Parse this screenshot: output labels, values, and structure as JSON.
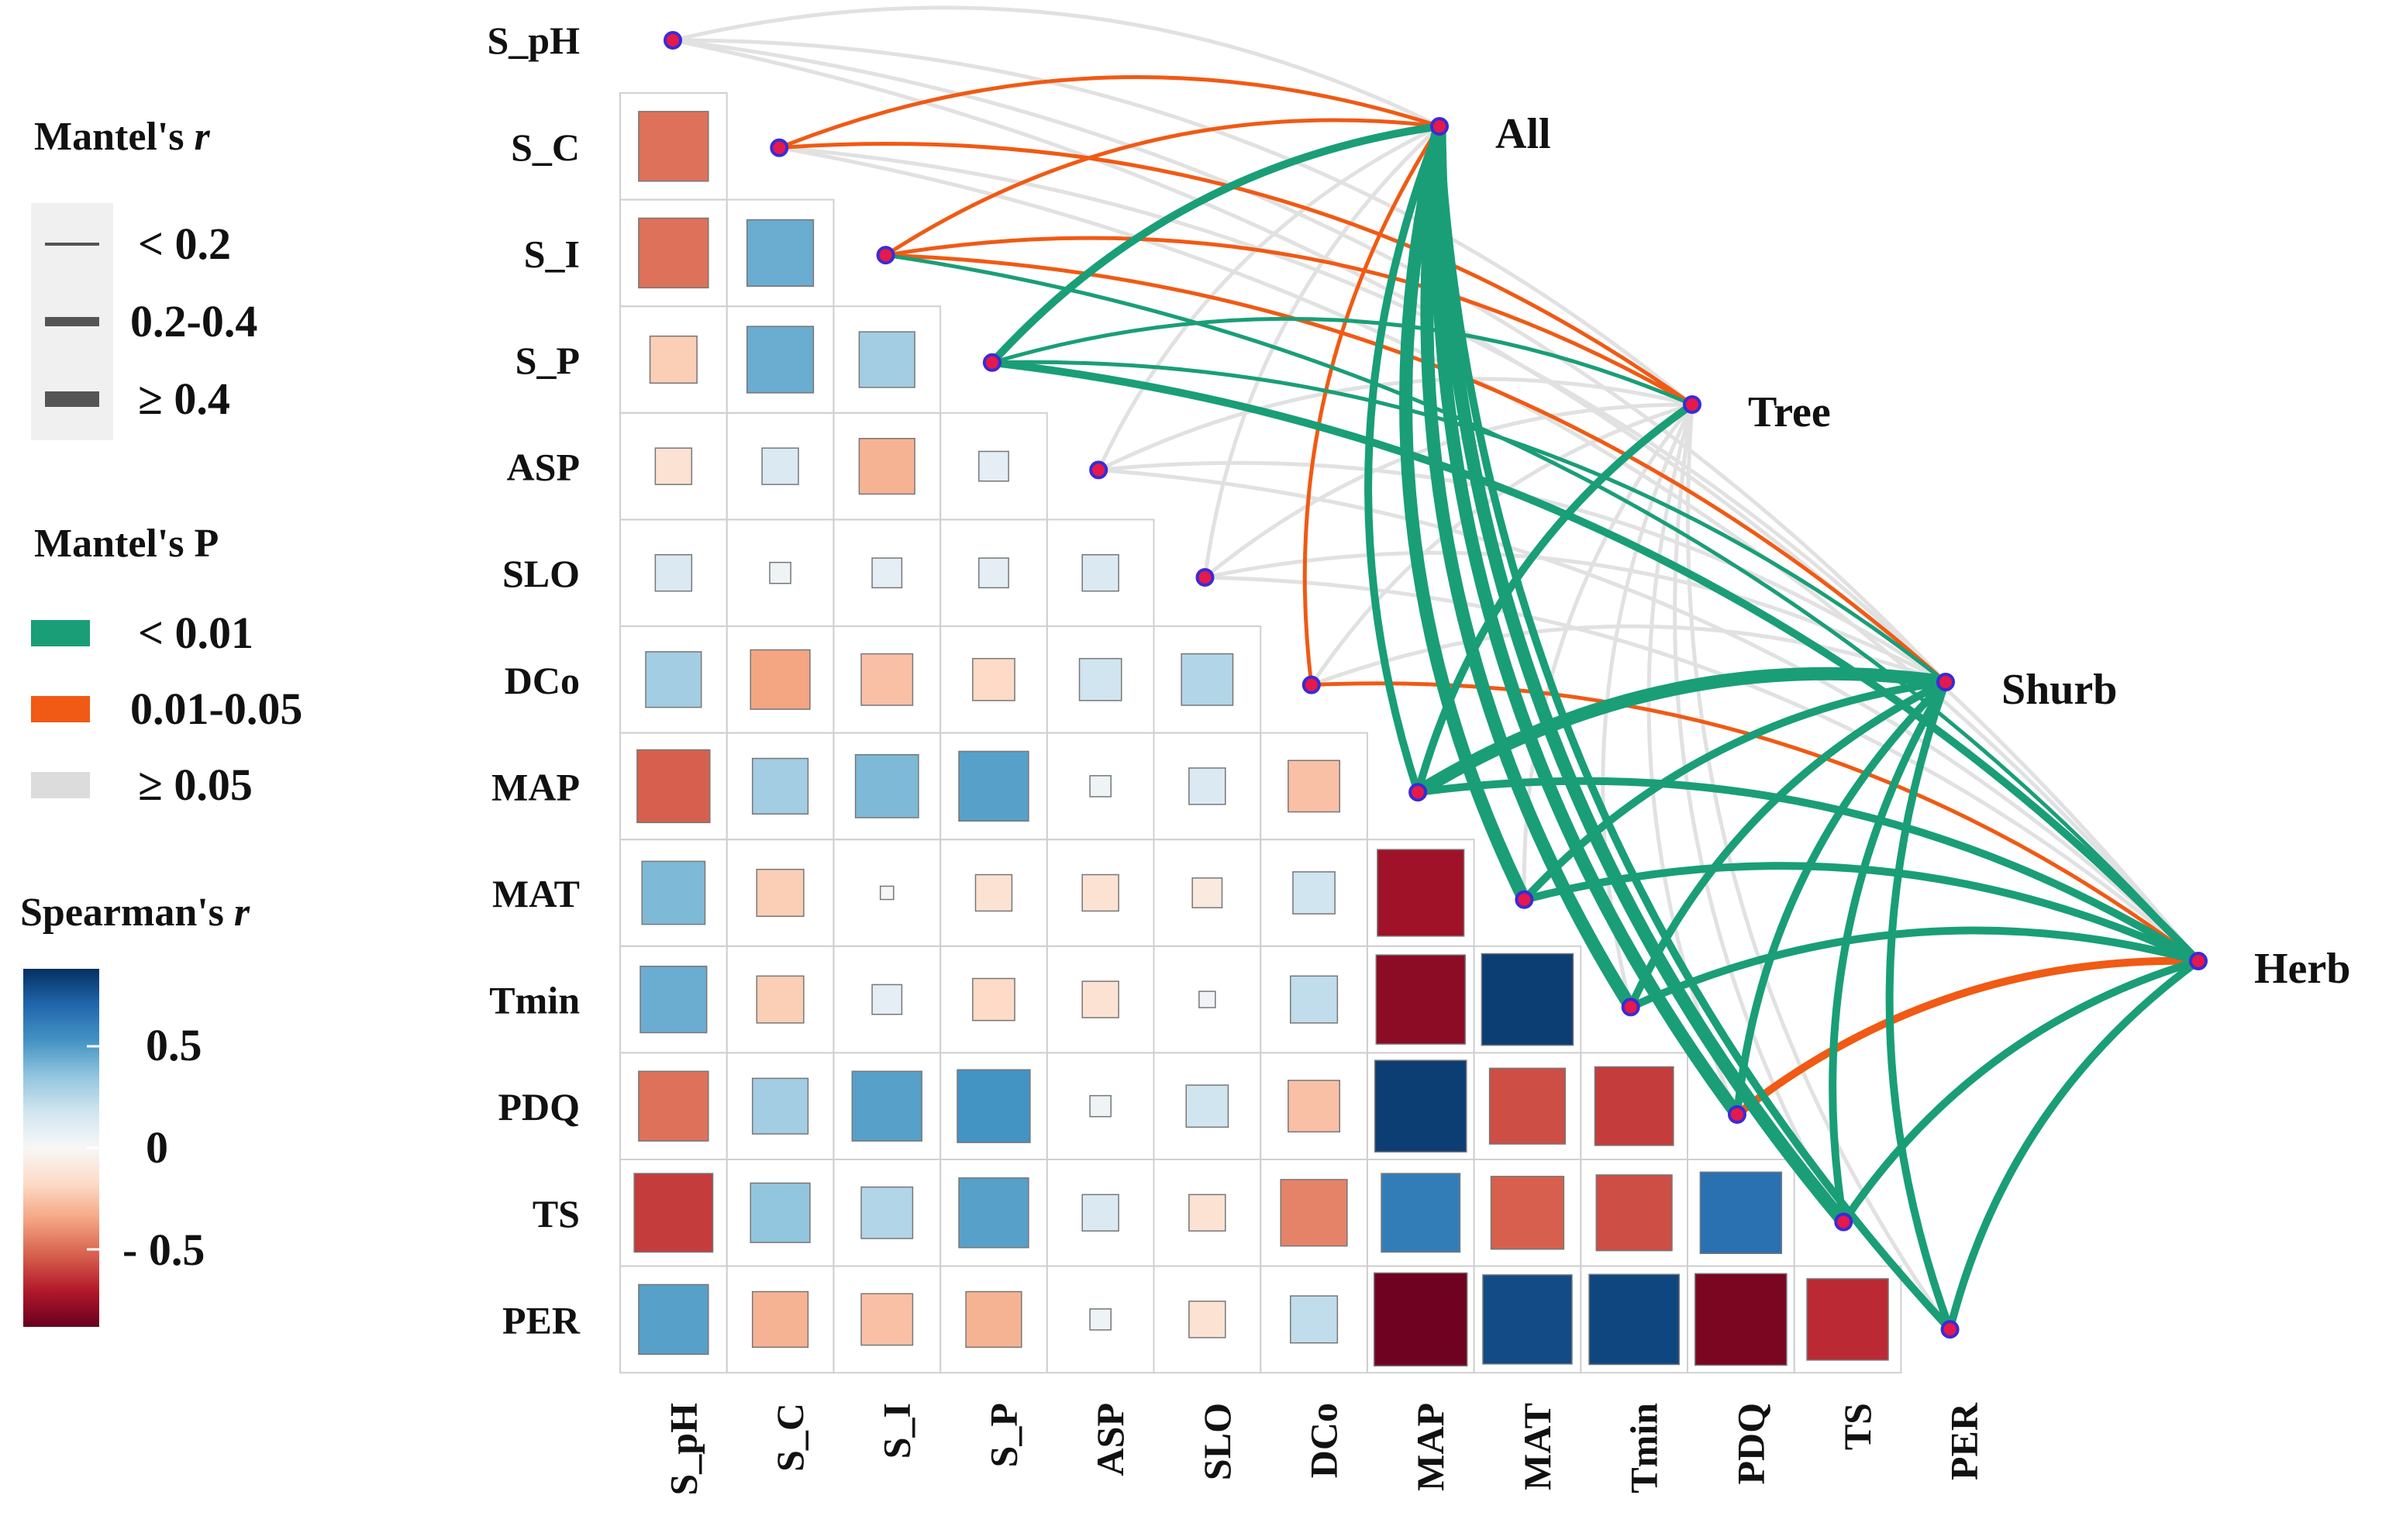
{
  "chart_data": {
    "type": "heatmap",
    "title": "",
    "variables": [
      "S_pH",
      "S_C",
      "S_I",
      "S_P",
      "ASP",
      "SLO",
      "DCo",
      "MAP",
      "MAT",
      "Tmin",
      "PDQ",
      "TS",
      "PER"
    ],
    "heatmap_rows": [
      "S_C",
      "S_I",
      "S_P",
      "ASP",
      "SLO",
      "DCo",
      "MAP",
      "MAT",
      "Tmin",
      "PDQ",
      "TS",
      "PER"
    ],
    "heatmap_cols": [
      "S_pH",
      "S_C",
      "S_I",
      "S_P",
      "ASP",
      "SLO",
      "DCo",
      "MAP",
      "MAT",
      "Tmin",
      "PDQ",
      "TS",
      "PER"
    ],
    "spearman_r": {
      "S_C": [
        -0.55
      ],
      "S_I": [
        -0.55,
        0.5
      ],
      "S_P": [
        -0.25,
        0.5,
        0.35
      ],
      "ASP": [
        -0.15,
        0.15,
        -0.35,
        0.1
      ],
      "SLO": [
        0.15,
        0.05,
        0.1,
        0.1,
        0.15
      ],
      "DCo": [
        0.35,
        -0.4,
        -0.3,
        -0.2,
        0.2,
        0.3
      ],
      "MAP": [
        -0.6,
        0.35,
        0.45,
        0.55,
        0.05,
        0.15,
        -0.3
      ],
      "MAT": [
        0.45,
        -0.25,
        0.02,
        -0.15,
        -0.15,
        -0.1,
        0.2,
        -0.85
      ],
      "Tmin": [
        0.5,
        -0.25,
        0.1,
        -0.2,
        -0.15,
        0.03,
        0.25,
        -0.9,
        0.95
      ],
      "PDQ": [
        -0.55,
        0.35,
        0.55,
        0.6,
        0.05,
        0.2,
        -0.3,
        0.95,
        -0.65,
        -0.7
      ],
      "TS": [
        -0.7,
        0.4,
        0.3,
        0.55,
        0.15,
        -0.15,
        -0.5,
        0.7,
        -0.6,
        -0.65,
        0.75
      ],
      "PER": [
        0.55,
        -0.35,
        -0.3,
        -0.35,
        0.05,
        -0.15,
        0.25,
        -0.98,
        0.9,
        0.92,
        -0.95,
        -0.75
      ]
    },
    "groups": [
      "All",
      "Tree",
      "Shurb",
      "Herb"
    ],
    "mantel_links": [
      {
        "group": "All",
        "var": "S_pH",
        "p": "≥ 0.05",
        "r": "< 0.2"
      },
      {
        "group": "All",
        "var": "S_C",
        "p": "0.01-0.05",
        "r": "< 0.2"
      },
      {
        "group": "All",
        "var": "S_I",
        "p": "0.01-0.05",
        "r": "< 0.2"
      },
      {
        "group": "All",
        "var": "S_P",
        "p": "< 0.01",
        "r": "0.2-0.4"
      },
      {
        "group": "All",
        "var": "ASP",
        "p": "≥ 0.05",
        "r": "< 0.2"
      },
      {
        "group": "All",
        "var": "SLO",
        "p": "≥ 0.05",
        "r": "< 0.2"
      },
      {
        "group": "All",
        "var": "DCo",
        "p": "0.01-0.05",
        "r": "< 0.2"
      },
      {
        "group": "All",
        "var": "MAP",
        "p": "< 0.01",
        "r": "0.2-0.4"
      },
      {
        "group": "All",
        "var": "MAT",
        "p": "< 0.01",
        "r": "≥ 0.4"
      },
      {
        "group": "All",
        "var": "Tmin",
        "p": "< 0.01",
        "r": "≥ 0.4"
      },
      {
        "group": "All",
        "var": "PDQ",
        "p": "< 0.01",
        "r": "≥ 0.4"
      },
      {
        "group": "All",
        "var": "TS",
        "p": "< 0.01",
        "r": "≥ 0.4"
      },
      {
        "group": "All",
        "var": "PER",
        "p": "< 0.01",
        "r": "0.2-0.4"
      },
      {
        "group": "Tree",
        "var": "S_pH",
        "p": "≥ 0.05",
        "r": "< 0.2"
      },
      {
        "group": "Tree",
        "var": "S_C",
        "p": "0.01-0.05",
        "r": "< 0.2"
      },
      {
        "group": "Tree",
        "var": "S_I",
        "p": "0.01-0.05",
        "r": "< 0.2"
      },
      {
        "group": "Tree",
        "var": "S_P",
        "p": "< 0.01",
        "r": "< 0.2"
      },
      {
        "group": "Tree",
        "var": "ASP",
        "p": "≥ 0.05",
        "r": "< 0.2"
      },
      {
        "group": "Tree",
        "var": "SLO",
        "p": "≥ 0.05",
        "r": "< 0.2"
      },
      {
        "group": "Tree",
        "var": "DCo",
        "p": "≥ 0.05",
        "r": "< 0.2"
      },
      {
        "group": "Tree",
        "var": "MAP",
        "p": "< 0.01",
        "r": "0.2-0.4"
      },
      {
        "group": "Tree",
        "var": "MAT",
        "p": "≥ 0.05",
        "r": "< 0.2"
      },
      {
        "group": "Tree",
        "var": "Tmin",
        "p": "≥ 0.05",
        "r": "< 0.2"
      },
      {
        "group": "Tree",
        "var": "PDQ",
        "p": "≥ 0.05",
        "r": "< 0.2"
      },
      {
        "group": "Tree",
        "var": "TS",
        "p": "≥ 0.05",
        "r": "< 0.2"
      },
      {
        "group": "Tree",
        "var": "PER",
        "p": "≥ 0.05",
        "r": "< 0.2"
      },
      {
        "group": "Shurb",
        "var": "S_pH",
        "p": "≥ 0.05",
        "r": "< 0.2"
      },
      {
        "group": "Shurb",
        "var": "S_C",
        "p": "≥ 0.05",
        "r": "< 0.2"
      },
      {
        "group": "Shurb",
        "var": "S_I",
        "p": "0.01-0.05",
        "r": "< 0.2"
      },
      {
        "group": "Shurb",
        "var": "S_P",
        "p": "< 0.01",
        "r": "< 0.2"
      },
      {
        "group": "Shurb",
        "var": "ASP",
        "p": "≥ 0.05",
        "r": "< 0.2"
      },
      {
        "group": "Shurb",
        "var": "SLO",
        "p": "≥ 0.05",
        "r": "< 0.2"
      },
      {
        "group": "Shurb",
        "var": "DCo",
        "p": "≥ 0.05",
        "r": "< 0.2"
      },
      {
        "group": "Shurb",
        "var": "MAP",
        "p": "< 0.01",
        "r": "≥ 0.4"
      },
      {
        "group": "Shurb",
        "var": "MAT",
        "p": "< 0.01",
        "r": "0.2-0.4"
      },
      {
        "group": "Shurb",
        "var": "Tmin",
        "p": "< 0.01",
        "r": "0.2-0.4"
      },
      {
        "group": "Shurb",
        "var": "PDQ",
        "p": "< 0.01",
        "r": "0.2-0.4"
      },
      {
        "group": "Shurb",
        "var": "TS",
        "p": "< 0.01",
        "r": "0.2-0.4"
      },
      {
        "group": "Shurb",
        "var": "PER",
        "p": "< 0.01",
        "r": "0.2-0.4"
      },
      {
        "group": "Herb",
        "var": "S_pH",
        "p": "≥ 0.05",
        "r": "< 0.2"
      },
      {
        "group": "Herb",
        "var": "S_C",
        "p": "≥ 0.05",
        "r": "< 0.2"
      },
      {
        "group": "Herb",
        "var": "S_I",
        "p": "< 0.01",
        "r": "< 0.2"
      },
      {
        "group": "Herb",
        "var": "S_P",
        "p": "< 0.01",
        "r": "0.2-0.4"
      },
      {
        "group": "Herb",
        "var": "ASP",
        "p": "≥ 0.05",
        "r": "< 0.2"
      },
      {
        "group": "Herb",
        "var": "SLO",
        "p": "≥ 0.05",
        "r": "< 0.2"
      },
      {
        "group": "Herb",
        "var": "DCo",
        "p": "0.01-0.05",
        "r": "< 0.2"
      },
      {
        "group": "Herb",
        "var": "MAP",
        "p": "< 0.01",
        "r": "0.2-0.4"
      },
      {
        "group": "Herb",
        "var": "MAT",
        "p": "< 0.01",
        "r": "0.2-0.4"
      },
      {
        "group": "Herb",
        "var": "Tmin",
        "p": "< 0.01",
        "r": "0.2-0.4"
      },
      {
        "group": "Herb",
        "var": "PDQ",
        "p": "0.01-0.05",
        "r": "0.2-0.4"
      },
      {
        "group": "Herb",
        "var": "TS",
        "p": "< 0.01",
        "r": "0.2-0.4"
      },
      {
        "group": "Herb",
        "var": "PER",
        "p": "< 0.01",
        "r": "0.2-0.4"
      }
    ]
  },
  "legend": {
    "mantel_r": {
      "title_text": "Mantel's ",
      "title_italic": "r",
      "items": [
        "< 0.2",
        "0.2-0.4",
        "≥ 0.4"
      ]
    },
    "mantel_p": {
      "title": "Mantel's P",
      "items": [
        {
          "label": "< 0.01",
          "color": "#1a9e77"
        },
        {
          "label": "0.01-0.05",
          "color": "#f05a14"
        },
        {
          "label": "≥ 0.05",
          "color": "#dcdcdc"
        }
      ]
    },
    "spearman": {
      "title_text": "Spearman's ",
      "title_italic": "r",
      "ticks": [
        "0.5",
        "0",
        "- 0.5"
      ],
      "colors": [
        "#053061",
        "#2166ac",
        "#4393c3",
        "#92c5de",
        "#d1e5f0",
        "#f7f7f7",
        "#fddbc7",
        "#f4a582",
        "#d6604d",
        "#b2182b",
        "#67001f"
      ]
    }
  }
}
